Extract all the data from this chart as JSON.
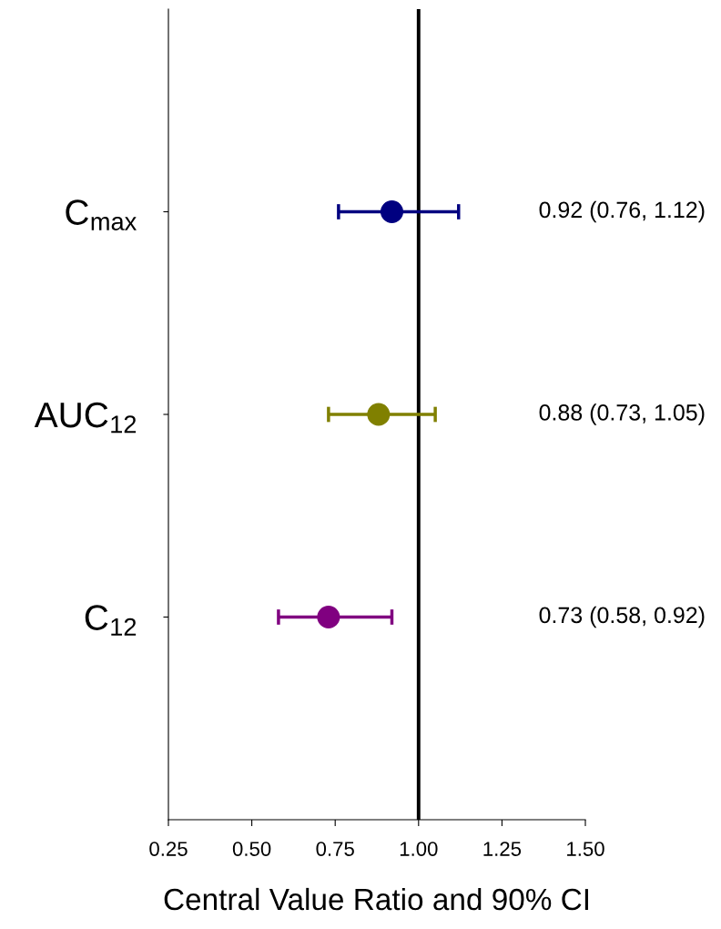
{
  "chart_data": {
    "type": "scatter",
    "orientation": "horizontal",
    "xlabel": "Central Value Ratio and 90% CI",
    "categories": [
      "C$_{max}$",
      "AUC$_{12}$",
      "C$_{12}$"
    ],
    "values": [
      0.92,
      0.88,
      0.73
    ],
    "colors": [
      "#000080",
      "#808000",
      "#800080"
    ],
    "errors": [
      [
        0.76,
        1.12
      ],
      [
        0.73,
        1.05
      ],
      [
        0.58,
        0.92
      ]
    ],
    "value_labels": [
      "0.92 (0.76, 1.12)",
      "0.88 (0.73, 1.05)",
      "0.73 (0.58, 0.92)"
    ],
    "xlim": [
      0.25,
      1.5
    ],
    "xticks": [
      {
        "value": 0.25,
        "label": "0.25"
      },
      {
        "value": 0.5,
        "label": "0.50"
      },
      {
        "value": 0.75,
        "label": "0.75"
      },
      {
        "value": 1.0,
        "label": "1.00"
      },
      {
        "value": 1.25,
        "label": "1.25"
      },
      {
        "value": 1.5,
        "label": "1.50"
      }
    ],
    "ref_lines": [
      {
        "axis": "x",
        "value": 1.0,
        "color": "#000000",
        "line_style": "solid"
      }
    ],
    "marker": "circle",
    "grid": false,
    "legend": false
  }
}
